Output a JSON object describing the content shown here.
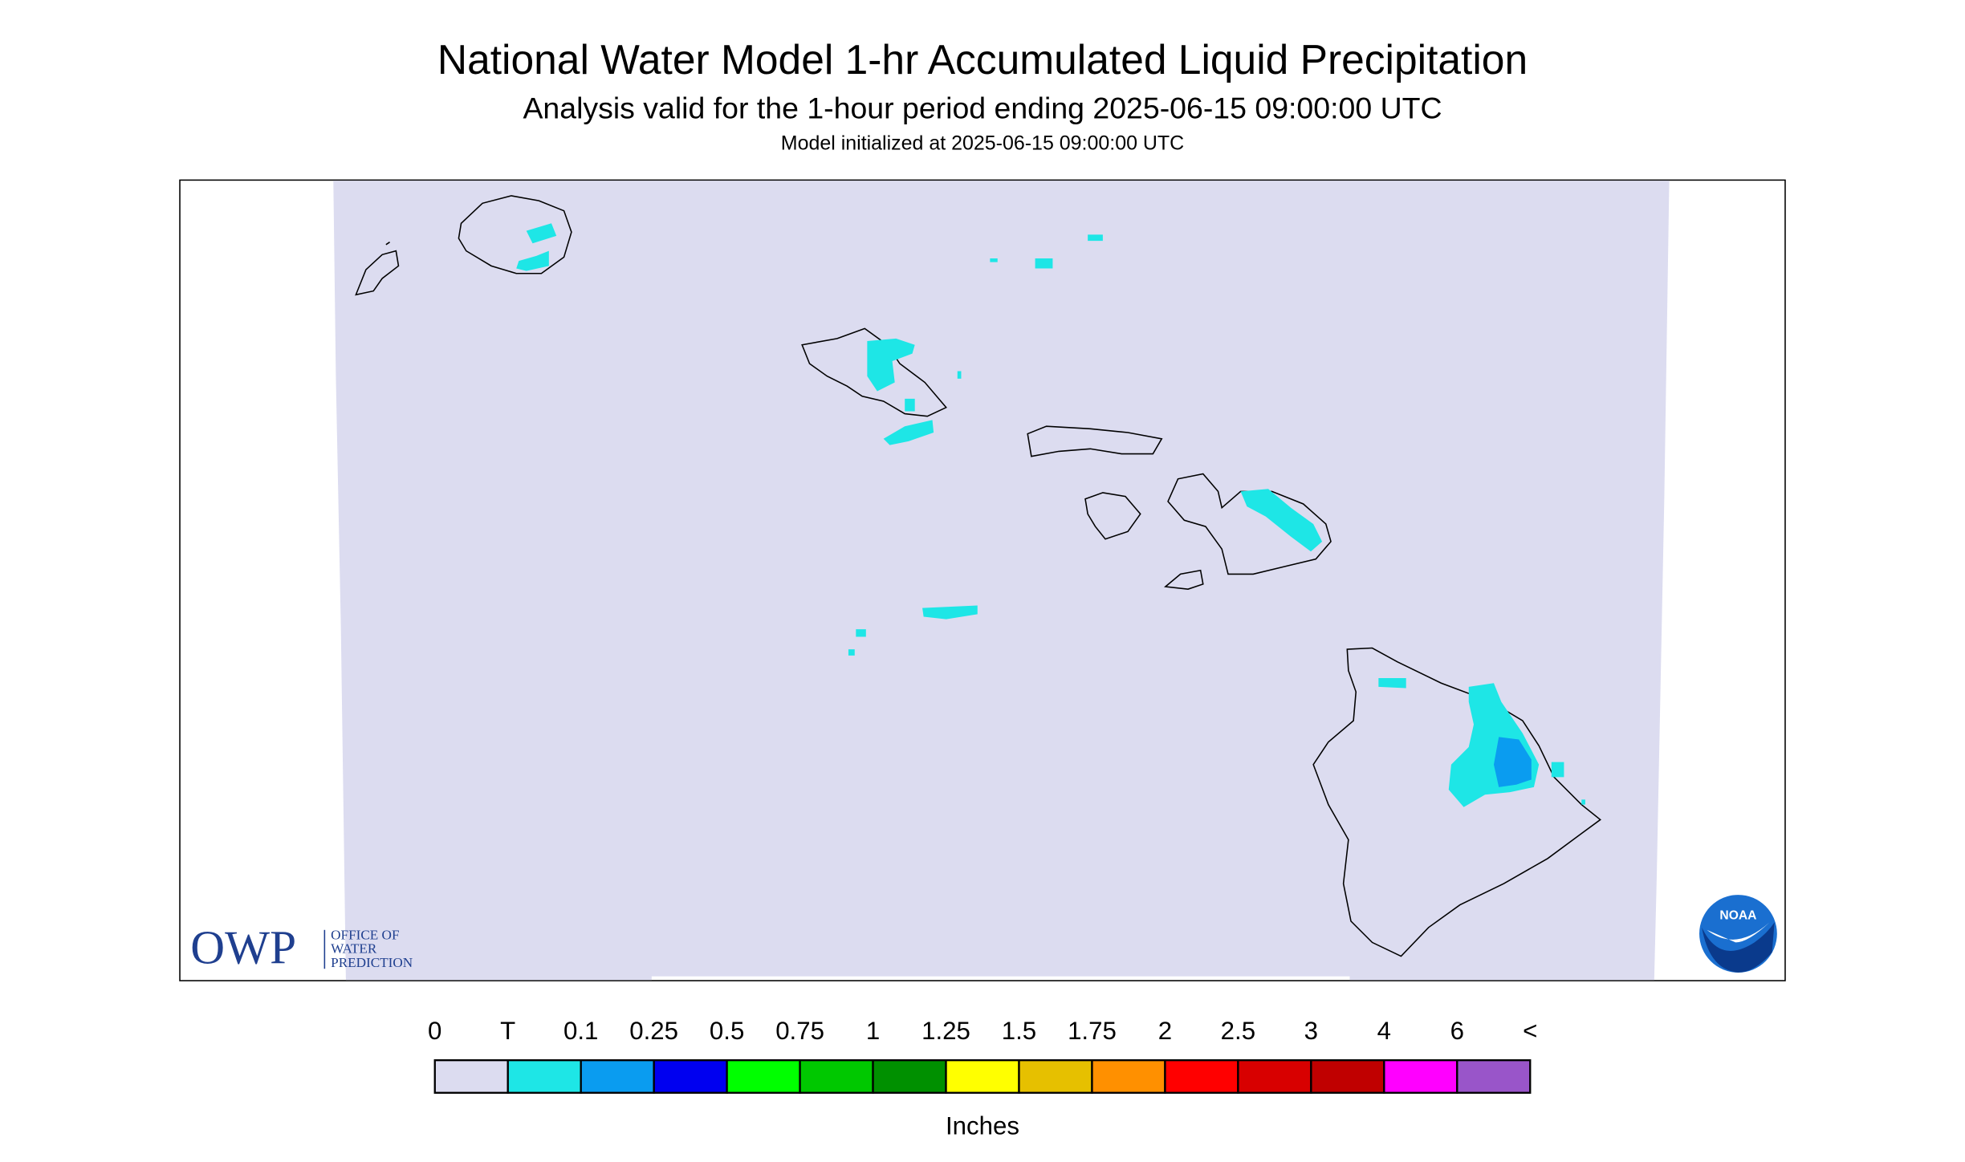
{
  "header": {
    "title": "National Water Model 1-hr Accumulated Liquid Precipitation",
    "subtitle": "Analysis valid for the 1-hour period ending 2025-06-15 09:00:00 UTC",
    "init": "Model initialized at 2025-06-15 09:00:00 UTC"
  },
  "legend": {
    "labels": [
      "0",
      "T",
      "0.1",
      "0.25",
      "0.5",
      "0.75",
      "1",
      "1.25",
      "1.5",
      "1.75",
      "2",
      "2.5",
      "3",
      "4",
      "6",
      "<"
    ],
    "colors": [
      "#dcdcf0",
      "#1ee6e6",
      "#0a9cf0",
      "#0000f0",
      "#00ff00",
      "#00c800",
      "#009000",
      "#ffff00",
      "#e6c000",
      "#ff9000",
      "#ff0000",
      "#d80000",
      "#c00000",
      "#ff00ff",
      "#9955c9"
    ],
    "unit": "Inches"
  },
  "logos": {
    "owp": {
      "abbr": "OWP",
      "lines": [
        "OFFICE OF",
        "WATER",
        "PREDICTION"
      ]
    },
    "noaa": "NOAA"
  }
}
